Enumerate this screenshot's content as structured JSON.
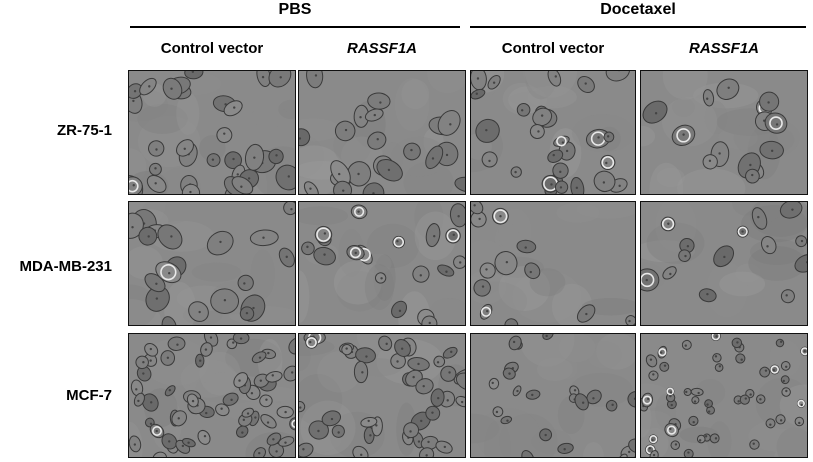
{
  "figure": {
    "groups": [
      {
        "label": "PBS"
      },
      {
        "label": "Docetaxel"
      }
    ],
    "columns": [
      {
        "label": "Control vector",
        "italic": false
      },
      {
        "label": "RASSF1A",
        "italic": true
      },
      {
        "label": "Control vector",
        "italic": false
      },
      {
        "label": "RASSF1A",
        "italic": true
      }
    ],
    "rows": [
      {
        "label": "ZR-75-1"
      },
      {
        "label": "MDA-MB-231"
      },
      {
        "label": "MCF-7"
      }
    ],
    "panels": [
      [
        "Phase-contrast micrograph of ZR-75-1 cells, PBS, control vector: dense clustered colony",
        "Phase-contrast micrograph of ZR-75-1 cells, PBS, RASSF1A: clustered cells",
        "Phase-contrast micrograph of ZR-75-1 cells, Docetaxel, control vector: clustered cells with some rounded",
        "Phase-contrast micrograph of ZR-75-1 cells, Docetaxel, RASSF1A: sparse clusters with rounded cells"
      ],
      [
        "Phase-contrast micrograph of MDA-MB-231 cells, PBS, control vector: spread cells",
        "Phase-contrast micrograph of MDA-MB-231 cells, PBS, RASSF1A: spread and rounded cells",
        "Phase-contrast micrograph of MDA-MB-231 cells, Docetaxel, control vector: sparse cells with bright rounded cells",
        "Phase-contrast micrograph of MDA-MB-231 cells, Docetaxel, RASSF1A: sparse cells with bright rounded cells"
      ],
      [
        "Phase-contrast micrograph of MCF-7 cells, PBS, control vector: confluent cells",
        "Phase-contrast micrograph of MCF-7 cells, PBS, RASSF1A: dense cells",
        "Phase-contrast micrograph of MCF-7 cells, Docetaxel, control vector: elongated sparse cells",
        "Phase-contrast micrograph of MCF-7 cells, Docetaxel, RASSF1A: many rounded detached cells"
      ]
    ],
    "colors": {
      "background": "#ffffff",
      "text": "#000000",
      "panel_bg": "#8a8a8a",
      "cell_edge": "#3a3a3a",
      "cell_halo": "#e8e8e8"
    }
  }
}
